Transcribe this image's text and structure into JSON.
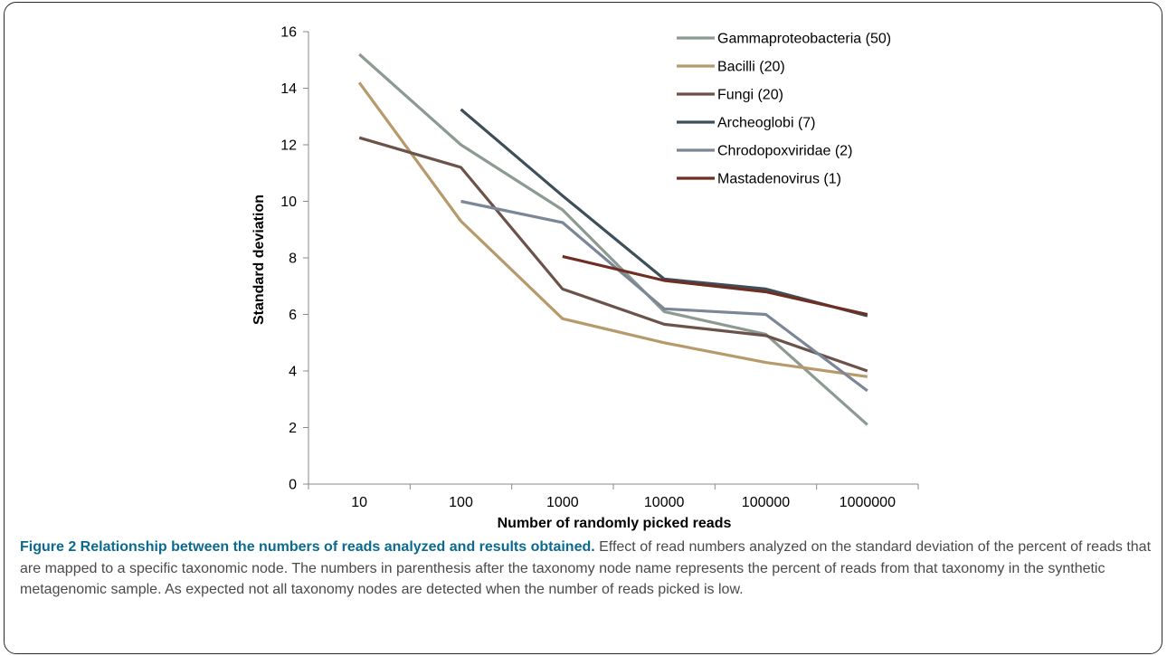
{
  "chart_data": {
    "type": "line",
    "title": "",
    "xlabel": "Number of randomly picked reads",
    "ylabel": "Standard deviation",
    "categories": [
      "10",
      "100",
      "1000",
      "10000",
      "100000",
      "1000000"
    ],
    "ylim": [
      0,
      16
    ],
    "yticks": [
      0,
      2,
      4,
      6,
      8,
      10,
      12,
      14,
      16
    ],
    "grid": false,
    "legend_position": "top-right",
    "series": [
      {
        "name": "Gammaproteobacteria (50)",
        "color": "#8d9a91",
        "values": [
          15.2,
          12.0,
          9.7,
          6.1,
          5.3,
          2.1
        ]
      },
      {
        "name": "Bacilli (20)",
        "color": "#b79a6c",
        "values": [
          14.2,
          9.3,
          5.85,
          5.0,
          4.3,
          3.8
        ]
      },
      {
        "name": "Fungi (20)",
        "color": "#6b5349",
        "values": [
          12.25,
          11.2,
          6.9,
          5.65,
          5.25,
          4.0
        ]
      },
      {
        "name": "Archeoglobi (7)",
        "color": "#3d4f5a",
        "values": [
          null,
          13.25,
          10.2,
          7.25,
          6.9,
          5.95
        ]
      },
      {
        "name": "Chrodopoxviridae (2)",
        "color": "#7b8797",
        "values": [
          null,
          10.0,
          9.25,
          6.2,
          6.0,
          3.3
        ]
      },
      {
        "name": "Mastadenovirus (1)",
        "color": "#6e2e22",
        "values": [
          null,
          null,
          8.05,
          7.2,
          6.8,
          6.0
        ]
      }
    ]
  },
  "caption": {
    "title": "Figure 2 Relationship between the numbers of reads analyzed and results obtained.",
    "body": " Effect of read numbers analyzed on the standard deviation of the percent of reads that are mapped to a specific taxonomic node. The numbers in parenthesis after the taxonomy node name represents the percent of reads from that taxonomy in the synthetic metagenomic sample. As expected not all taxonomy nodes are detected when the number of reads picked is low."
  }
}
